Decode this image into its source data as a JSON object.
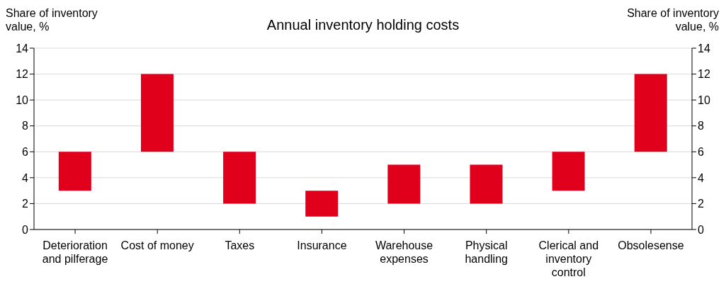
{
  "chart_data": {
    "type": "bar",
    "title": "Annual inventory holding costs",
    "ylabel": "Share of inventory value, %",
    "y2label": "Share of inventory value, %",
    "categories": [
      "Deterioration and pilferage",
      "Cost of money",
      "Taxes",
      "Insurance",
      "Warehouse expenses",
      "Physical handling",
      "Clerical and inventory control",
      "Obsolesense"
    ],
    "base": [
      3,
      6,
      2,
      1,
      2,
      2,
      3,
      6
    ],
    "values": [
      3,
      6,
      4,
      2,
      3,
      3,
      3,
      6
    ],
    "color": "#e0001b",
    "ylim": [
      0,
      14
    ],
    "yticks": [
      0,
      2,
      4,
      6,
      8,
      10,
      12,
      14
    ],
    "y2lim": [
      0,
      14
    ],
    "y2ticks": [
      0,
      2,
      4,
      6,
      8,
      10,
      12,
      14
    ],
    "grid": "y"
  }
}
